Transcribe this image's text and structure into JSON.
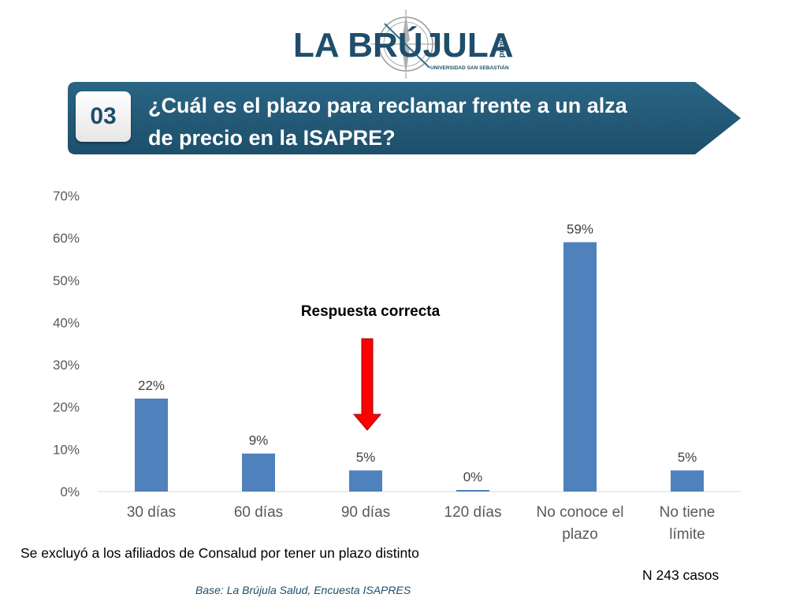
{
  "header": {
    "logo_text": "LA BRÚJULA",
    "logo_subtext": "Salud",
    "logo_university": "UNIVERSIDAD SAN SEBASTIÁN"
  },
  "banner": {
    "number": "03",
    "question_line1": "¿Cuál es el plazo para reclamar frente a un alza",
    "question_line2": "de precio en la ISAPRE?"
  },
  "chart_data": {
    "type": "bar",
    "categories": [
      [
        "30 días"
      ],
      [
        "60 días"
      ],
      [
        "90 días"
      ],
      [
        "120 días"
      ],
      [
        "No conoce el",
        "plazo"
      ],
      [
        "No tiene",
        "límite"
      ]
    ],
    "values": [
      22,
      9,
      5,
      0,
      59,
      5
    ],
    "data_labels": [
      "22%",
      "9%",
      "5%",
      "0%",
      "59%",
      "5%"
    ],
    "yticks": [
      "0%",
      "10%",
      "20%",
      "30%",
      "40%",
      "50%",
      "60%",
      "70%"
    ],
    "ylim": [
      0,
      70
    ],
    "annotation": "Respuesta correcta",
    "annotation_target": "90 días",
    "title": "",
    "xlabel": "",
    "ylabel": "",
    "bar_color": "#4f81bd",
    "arrow_color": "#ff0000"
  },
  "footer": {
    "note": "Se excluyó a los afiliados de Consalud por tener un plazo distinto",
    "sample": "N 243 casos",
    "source": "Base: La Brújula Salud, Encuesta ISAPRES"
  }
}
